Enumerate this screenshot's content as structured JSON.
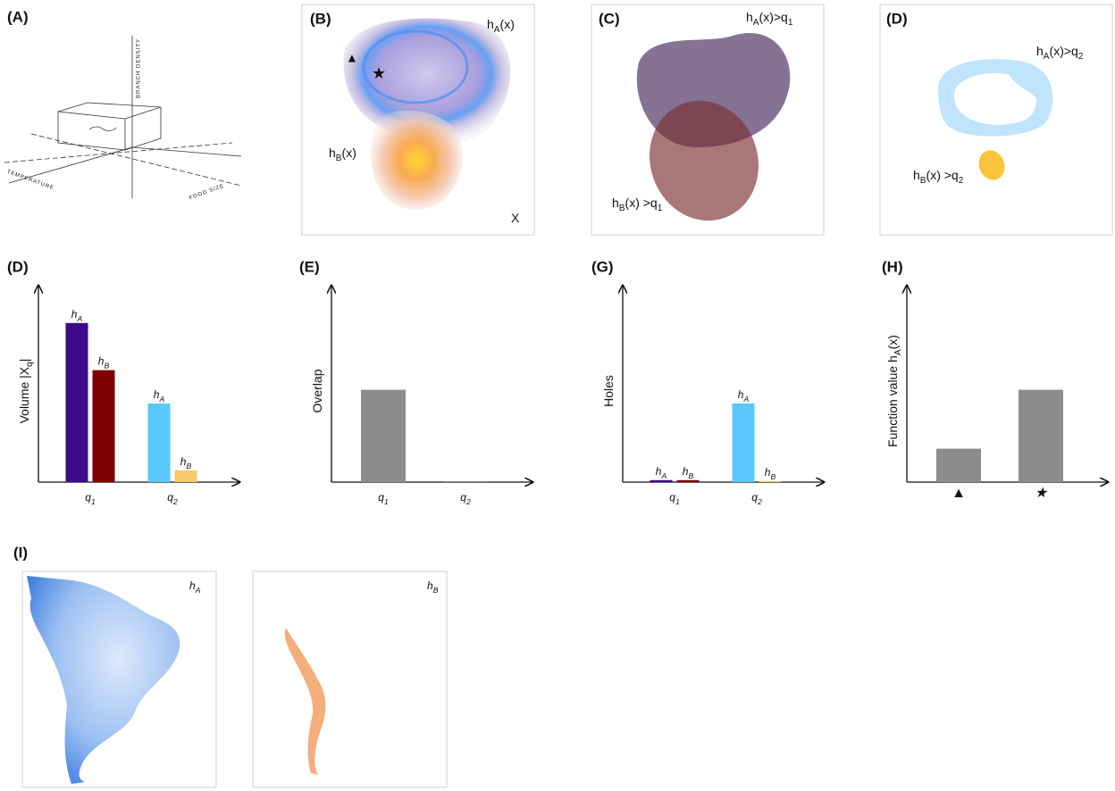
{
  "panel_labels": [
    "(A)",
    "(B)",
    "(C)",
    "(D)",
    "(D)",
    "(E)",
    "(G)",
    "(H)",
    "(I)"
  ],
  "diagrams": {
    "A": {
      "axes": [
        "BRANCH DENSITY",
        "TEMPERATURE",
        "FOOD SIZE"
      ]
    },
    "B": {
      "labels": [
        "hA(x)",
        "hB(x)",
        "X",
        "▲",
        "★"
      ]
    },
    "C": {
      "labels": [
        "hA(x)>q1",
        "hB(x) >q1"
      ]
    },
    "D": {
      "labels": [
        "hA(x)>q2",
        "hB(x) >q2"
      ]
    },
    "I": {
      "labels": [
        "hA",
        "hB"
      ]
    }
  },
  "chart_data": [
    {
      "type": "bar",
      "y_label": "Volume |Xq|",
      "categories": [
        "q1",
        "q2"
      ],
      "ylim": [
        0,
        100
      ],
      "data_labels": true,
      "series": [
        {
          "name": "hA",
          "colors": [
            "#3d0a8a",
            "#5ac8fa"
          ],
          "values": [
            81,
            40
          ]
        },
        {
          "name": "hB",
          "colors": [
            "#7f0000",
            "#f9c96a"
          ],
          "values": [
            57,
            6
          ]
        }
      ]
    },
    {
      "type": "bar",
      "y_label": "Overlap",
      "categories": [
        "q1",
        "q2"
      ],
      "ylim": [
        0,
        100
      ],
      "data_labels": false,
      "series": [
        {
          "colors": [
            "#8c8c8c",
            "#8c8c8c"
          ],
          "values": [
            47,
            0.5
          ]
        }
      ]
    },
    {
      "type": "bar",
      "y_label": "Holes",
      "categories": [
        "q1",
        "q2"
      ],
      "ylim": [
        0,
        100
      ],
      "data_labels": true,
      "series": [
        {
          "name": "hA",
          "colors": [
            "#3d0a8a",
            "#5ac8fa"
          ],
          "values": [
            1,
            40
          ]
        },
        {
          "name": "hB",
          "colors": [
            "#7f0000",
            "#f9c96a"
          ],
          "values": [
            1,
            0.5
          ]
        }
      ]
    },
    {
      "type": "bar",
      "y_label": "Function value hA(x)",
      "categories": [
        "▲",
        "★"
      ],
      "ylim": [
        0,
        100
      ],
      "data_labels": false,
      "series": [
        {
          "colors": [
            "#8c8c8c",
            "#8c8c8c"
          ],
          "values": [
            17,
            47
          ]
        }
      ]
    }
  ]
}
